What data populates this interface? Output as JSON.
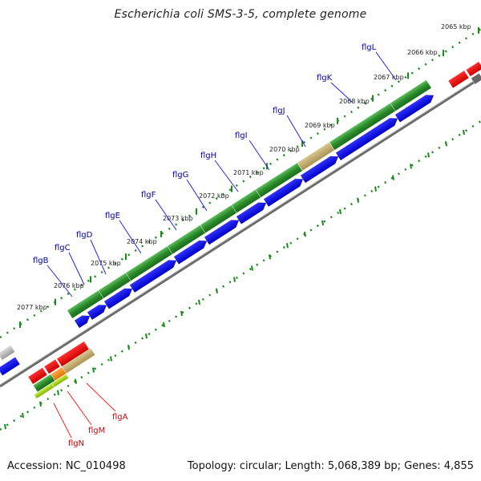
{
  "title": "Escherichia coli SMS-3-5, complete genome",
  "footer": {
    "accession": "Accession: NC_010498",
    "summary": "Topology: circular; Length: 5,068,389 bp; Genes: 4,855"
  },
  "scale_labels": [
    "2065 kbp",
    "2066 kbp",
    "2067 kbp",
    "2068 kbp",
    "2069 kbp",
    "2070 kbp",
    "2071 kbp",
    "2072 kbp",
    "2073 kbp",
    "2074 kbp",
    "2075 kbp",
    "2076 kbp",
    "2077 kbp"
  ],
  "upper_genes": [
    "flgL",
    "flgK",
    "flgJ",
    "flgI",
    "flgH",
    "flgG",
    "flgF",
    "flgE",
    "flgD",
    "flgC",
    "flgB"
  ],
  "lower_genes": [
    "flgA",
    "flgM",
    "flgN"
  ],
  "colors": {
    "upper_gene_label": "#0000aa",
    "lower_gene_label": "#cc0000",
    "cds_forward": "#2a8a2a",
    "cds_reverse": "#0000ee",
    "gene_reverse": "#ee0000",
    "tick": "#1a8a1a",
    "backbone": "#777777"
  }
}
